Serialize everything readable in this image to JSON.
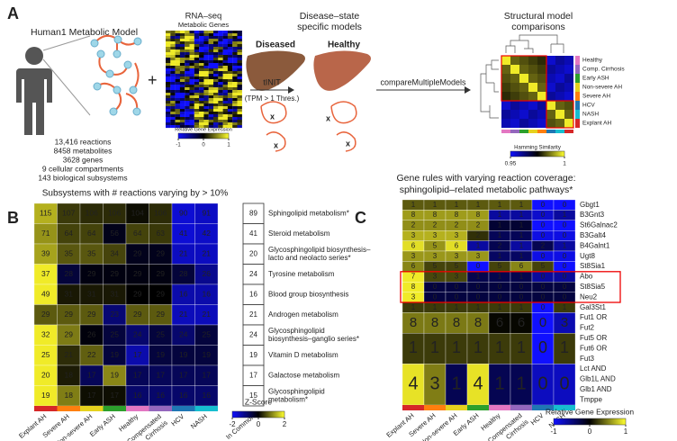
{
  "panel_a": {
    "label": "A",
    "model_title": "Human1 Metabolic Model",
    "model_stats": [
      "13,416 reactions",
      "8458 metabolites",
      "3628 genes",
      "9 cellular compartments",
      "143 biological subsystems"
    ],
    "plus": "+",
    "rnaseq_title": "RNA–seq",
    "rnaseq_subtitle": "Metabolic Genes",
    "expression_bar": {
      "title": "Relative Gene Expression",
      "ticks": [
        -1,
        0,
        1
      ]
    },
    "tinit": "tINIT",
    "threshold": "(TPM > 1 Thres.)",
    "models_title": [
      "Disease–state",
      "specific models"
    ],
    "diseased": "Diseased",
    "healthy": "Healthy",
    "compare": "compareMultipleModels",
    "comparison_title": [
      "Structural model",
      "comparisons"
    ],
    "comparison_labels": [
      "Healthy",
      "Comp. Cirrhosis",
      "Early ASH",
      "Non-severe AH",
      "Severe AH",
      "HCV",
      "NASH",
      "Explant AH"
    ],
    "comparison_colors": [
      "#e377c2",
      "#9467bd",
      "#2ca02c",
      "#e6d21e",
      "#ff7f0e",
      "#1f77b4",
      "#17becf",
      "#d62728"
    ],
    "hamming": {
      "title": "Hamming Similarity",
      "ticks": [
        0.95,
        1
      ]
    }
  },
  "panel_b": {
    "label": "B",
    "title": "Subsystems with # reactions varying by > 10%",
    "columns": [
      "Explant AH",
      "Severe AH",
      "Non-severe AH",
      "Early ASH",
      "Healthy",
      [
        "Compensated",
        "Cirrhosis"
      ],
      "HCV",
      "NASH"
    ],
    "column_colors": [
      "#d62728",
      "#ff7f0e",
      "#e6d21e",
      "#2ca02c",
      "#e377c2",
      "#9467bd",
      "#1f77b4",
      "#17becf"
    ],
    "common_label": "In Common",
    "rows": [
      {
        "name": [
          "Sphingolipid metabolism*"
        ],
        "values": [
          115,
          107,
          106,
          106,
          104,
          106,
          90,
          91
        ],
        "common": 89
      },
      {
        "name": [
          "Steroid metabolism"
        ],
        "values": [
          71,
          64,
          64,
          56,
          64,
          63,
          41,
          42
        ],
        "common": 41
      },
      {
        "name": [
          "Glycosphingolipid biosynthesis–",
          "lacto and neolacto series*"
        ],
        "values": [
          39,
          35,
          35,
          34,
          29,
          29,
          21,
          21
        ],
        "common": 20
      },
      {
        "name": [
          "Tyrosine metabolism"
        ],
        "values": [
          37,
          28,
          29,
          29,
          29,
          29,
          28,
          26
        ],
        "common": 24
      },
      {
        "name": [
          "Blood group biosynthesis"
        ],
        "values": [
          49,
          31,
          31,
          31,
          29,
          29,
          16,
          16
        ],
        "common": 16
      },
      {
        "name": [
          "Androgen metabolism"
        ],
        "values": [
          29,
          29,
          29,
          23,
          29,
          29,
          21,
          21
        ],
        "common": 21
      },
      {
        "name": [
          "Glycosphingolipid",
          "biosynthesis–ganglio series*"
        ],
        "values": [
          32,
          29,
          26,
          25,
          24,
          25,
          24,
          25
        ],
        "common": 24
      },
      {
        "name": [
          "Vitamin D metabolism"
        ],
        "values": [
          25,
          21,
          22,
          19,
          17,
          19,
          19,
          19
        ],
        "common": 19
      },
      {
        "name": [
          "Galactose metabolism"
        ],
        "values": [
          20,
          18,
          17,
          19,
          17,
          17,
          17,
          17
        ],
        "common": 17
      },
      {
        "name": [
          "Glycosphingolipid",
          "metabolism*"
        ],
        "values": [
          19,
          18,
          17,
          17,
          16,
          16,
          16,
          16
        ],
        "common": 15
      }
    ],
    "zscore": {
      "title": "Z-Score",
      "ticks": [
        -2,
        0,
        2
      ]
    }
  },
  "panel_c": {
    "label": "C",
    "title": [
      "Gene rules with varying reaction coverage:",
      "sphingolipid–related metabolic pathways*"
    ],
    "columns": [
      "Explant AH",
      "Severe AH",
      "Non-severe AH",
      "Early ASH",
      "Healthy",
      [
        "Compensated",
        "Cirrhosis"
      ],
      "HCV",
      "NASH"
    ],
    "column_colors": [
      "#d62728",
      "#ff7f0e",
      "#e6d21e",
      "#2ca02c",
      "#e377c2",
      "#9467bd",
      "#1f77b4",
      "#17becf"
    ],
    "rows": [
      {
        "genes": [
          "Gbgt1"
        ],
        "values": [
          1,
          1,
          1,
          1,
          1,
          1,
          0,
          0
        ]
      },
      {
        "genes": [
          "B3Gnt3"
        ],
        "values": [
          8,
          8,
          8,
          8,
          1,
          1,
          0,
          1
        ]
      },
      {
        "genes": [
          "St6Galnac2"
        ],
        "values": [
          2,
          2,
          2,
          2,
          1,
          1,
          0,
          0
        ]
      },
      {
        "genes": [
          "B3Galt4"
        ],
        "values": [
          3,
          3,
          3,
          2,
          1,
          1,
          0,
          0
        ]
      },
      {
        "genes": [
          "B4Galnt1"
        ],
        "values": [
          6,
          5,
          6,
          1,
          2,
          1,
          2,
          1
        ]
      },
      {
        "genes": [
          "Ugt8"
        ],
        "values": [
          3,
          3,
          3,
          3,
          1,
          1,
          0,
          0
        ]
      },
      {
        "genes": [
          "St8Sia1"
        ],
        "values": [
          6,
          5,
          5,
          0,
          5,
          6,
          5,
          0
        ]
      },
      {
        "genes": [
          "Abo"
        ],
        "values": [
          7,
          3,
          3,
          1,
          1,
          1,
          0,
          0
        ]
      },
      {
        "genes": [
          "St8Sia5"
        ],
        "values": [
          8,
          0,
          0,
          0,
          0,
          0,
          0,
          0
        ]
      },
      {
        "genes": [
          "Neu2"
        ],
        "values": [
          3,
          0,
          0,
          0,
          0,
          0,
          0,
          0
        ]
      },
      {
        "genes": [
          "Gal3St1"
        ],
        "values": [
          1,
          1,
          1,
          1,
          1,
          1,
          0,
          1
        ]
      },
      {
        "genes": [
          "Fut1 OR",
          "Fut2"
        ],
        "values": [
          8,
          8,
          8,
          8,
          6,
          6,
          0,
          3
        ]
      },
      {
        "genes": [
          "Fut5 OR",
          "Fut6 OR",
          "Fut3"
        ],
        "values": [
          1,
          1,
          1,
          1,
          1,
          1,
          0,
          1
        ]
      },
      {
        "genes": [
          "Lct AND",
          "Glb1L AND",
          "Glb1 AND",
          "Tmppe"
        ],
        "values": [
          4,
          3,
          1,
          4,
          1,
          1,
          0,
          0
        ]
      }
    ],
    "expression_bar": {
      "title": "Relative Gene Expression",
      "ticks": [
        -1,
        0,
        1
      ]
    }
  }
}
